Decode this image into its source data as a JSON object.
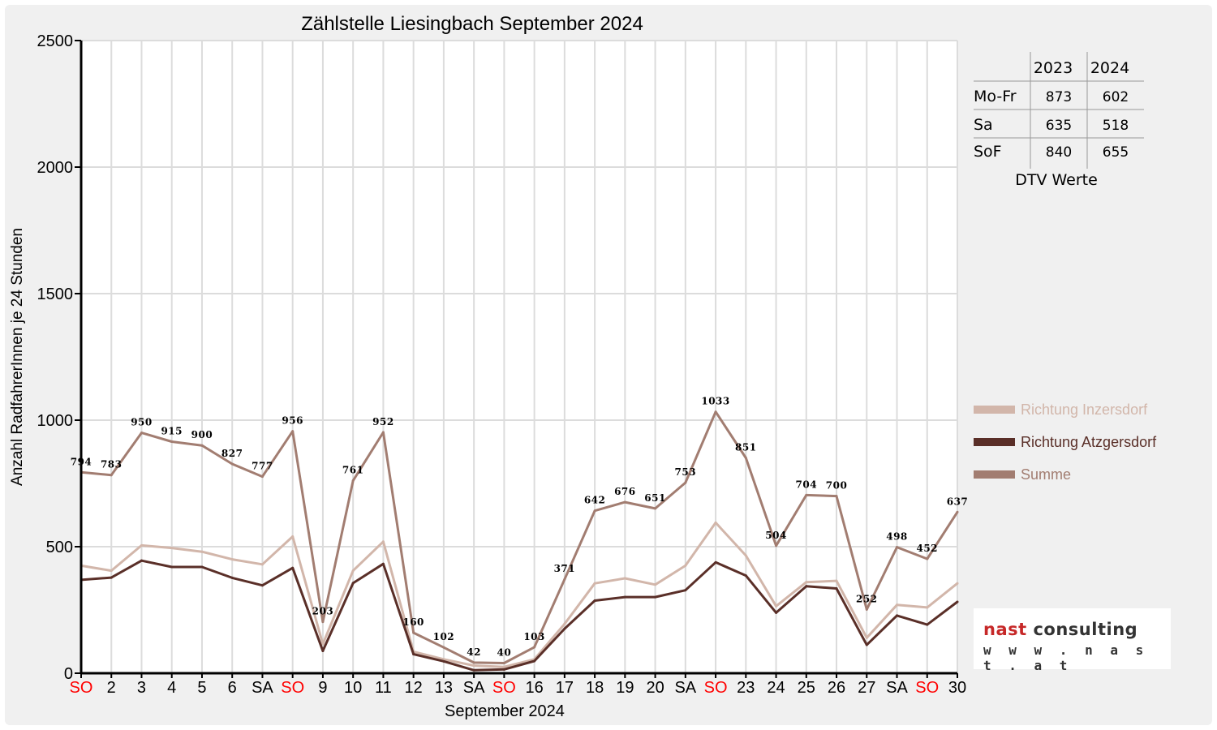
{
  "colors": {
    "inzersdorf": "#d2b6aa",
    "atzgersdorf": "#5a2f28",
    "summe": "#a27d71",
    "weekend_label": "#ff0000",
    "grid": "#dcdcdc",
    "logo_red": "#c62828",
    "logo_dark": "#333333"
  },
  "dtv_table": {
    "headers": [
      "",
      "2023",
      "2024"
    ],
    "rows": [
      {
        "label": "Mo-Fr",
        "v2023": "873",
        "v2024": "602"
      },
      {
        "label": "Sa",
        "v2023": "635",
        "v2024": "518"
      },
      {
        "label": "SoF",
        "v2023": "840",
        "v2024": "655"
      }
    ],
    "caption": "DTV Werte"
  },
  "logo": {
    "part1": "nast",
    "part2": "consulting",
    "url": "w w w . n a s t . a t"
  },
  "chart_data": {
    "type": "line",
    "title": "Zählstelle Liesingbach September 2024",
    "xlabel": "September 2024",
    "ylabel": "Anzahl RadfahrerInnen je 24 Stunden",
    "ylim": [
      0,
      2500
    ],
    "yticks": [
      "0",
      "500",
      "1000",
      "1500",
      "2000",
      "2500"
    ],
    "grid": true,
    "legend_position": "right",
    "categories": [
      "SO",
      "2",
      "3",
      "4",
      "5",
      "6",
      "SA",
      "SO",
      "9",
      "10",
      "11",
      "12",
      "13",
      "SA",
      "SO",
      "16",
      "17",
      "18",
      "19",
      "20",
      "SA",
      "SO",
      "23",
      "24",
      "25",
      "26",
      "27",
      "SA",
      "SO",
      "30"
    ],
    "weekend_sunday": [
      true,
      false,
      false,
      false,
      false,
      false,
      false,
      true,
      false,
      false,
      false,
      false,
      false,
      false,
      true,
      false,
      false,
      false,
      false,
      false,
      false,
      true,
      false,
      false,
      false,
      false,
      false,
      false,
      true,
      false
    ],
    "series": [
      {
        "name": "Richtung Inzersdorf",
        "color_key": "inzersdorf",
        "values": [
          425,
          405,
          505,
          495,
          480,
          450,
          430,
          540,
          115,
          405,
          520,
          85,
          55,
          30,
          25,
          55,
          195,
          355,
          375,
          350,
          425,
          595,
          465,
          265,
          360,
          365,
          140,
          270,
          260,
          355
        ]
      },
      {
        "name": "Richtung Atzgersdorf",
        "color_key": "atzgersdorf",
        "values": [
          369,
          378,
          445,
          420,
          420,
          377,
          347,
          416,
          88,
          356,
          432,
          75,
          47,
          12,
          15,
          48,
          176,
          287,
          301,
          301,
          328,
          438,
          386,
          239,
          344,
          335,
          112,
          228,
          192,
          282
        ]
      },
      {
        "name": "Summe",
        "color_key": "summe",
        "values": [
          794,
          783,
          950,
          915,
          900,
          827,
          777,
          956,
          203,
          761,
          952,
          160,
          102,
          42,
          40,
          103,
          371,
          642,
          676,
          651,
          753,
          1033,
          851,
          504,
          704,
          700,
          252,
          498,
          452,
          637
        ]
      }
    ],
    "data_labels": [
      "794",
      "783",
      "950",
      "915",
      "900",
      "827",
      "777",
      "956",
      "203",
      "761",
      "952",
      "160",
      "102",
      "42",
      "40",
      "103",
      "371",
      "642",
      "676",
      "651",
      "753",
      "1033",
      "851",
      "504",
      "704",
      "700",
      "252",
      "498",
      "452",
      "637"
    ]
  }
}
